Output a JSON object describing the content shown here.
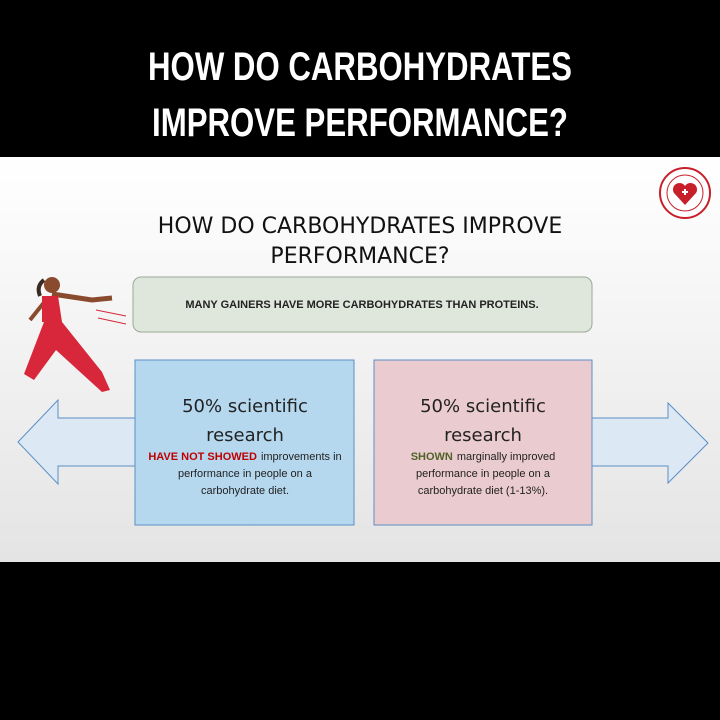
{
  "header": {
    "title_lines": [
      "HOW DO CARBOHYDRATES",
      "IMPROVE PERFORMANCE?"
    ]
  },
  "slide": {
    "title_lines": [
      "HOW DO CARBOHYDRATES IMPROVE",
      "PERFORMANCE?"
    ],
    "banner": "MANY GAINERS HAVE MORE CARBOHYDRATES THAN PROTEINS.",
    "left_box": {
      "heading_lines": [
        "50% scientific",
        "research"
      ],
      "highlight": "HAVE NOT SHOWED",
      "text_lines": [
        "improvements in",
        "performance in people on a",
        "carbohydrate diet."
      ]
    },
    "right_box": {
      "heading_lines": [
        "50% scientific",
        "research"
      ],
      "highlight": "SHOWN",
      "text_lines": [
        "marginally improved",
        "performance in people on a",
        "carbohydrate diet (1-13%)."
      ]
    }
  }
}
